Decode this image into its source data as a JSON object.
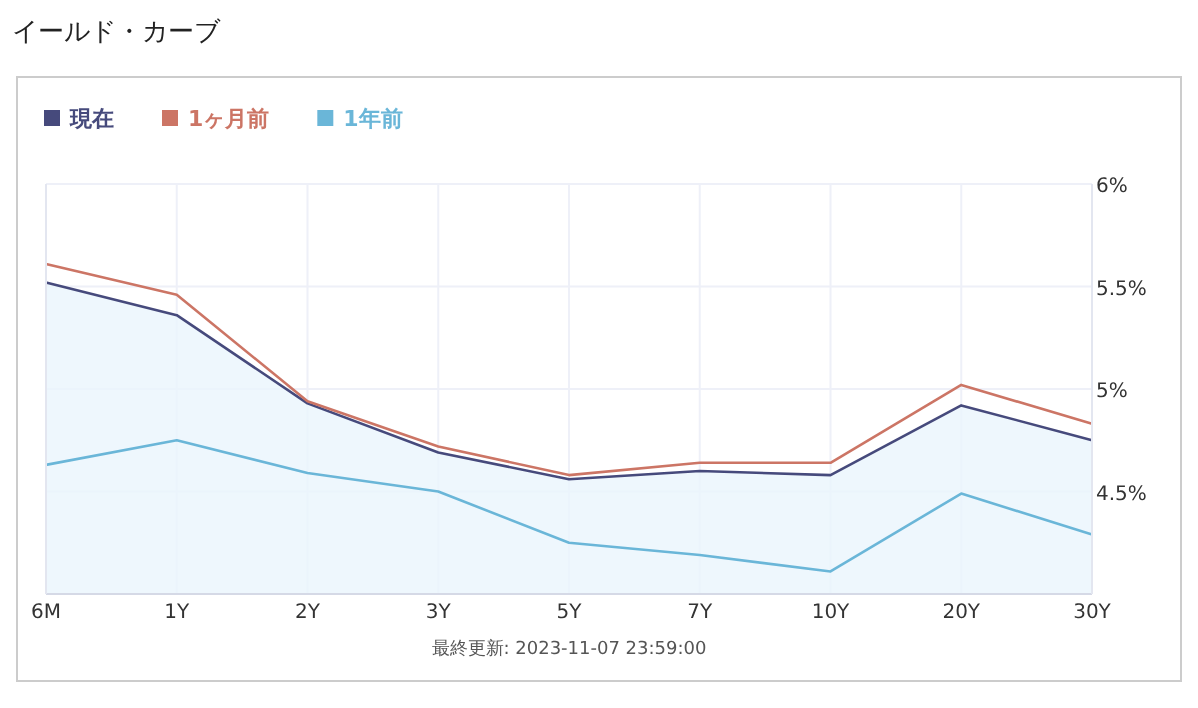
{
  "chart_data": {
    "type": "line",
    "title": "イールド・カーブ",
    "categories": [
      "6M",
      "1Y",
      "2Y",
      "3Y",
      "5Y",
      "7Y",
      "10Y",
      "20Y",
      "30Y"
    ],
    "series": [
      {
        "name": "現在",
        "type": "area",
        "color": "#464a7c",
        "values": [
          5.52,
          5.36,
          4.93,
          4.69,
          4.56,
          4.6,
          4.58,
          4.92,
          4.75
        ]
      },
      {
        "name": "1ヶ月前",
        "color": "#cc7565",
        "values": [
          5.61,
          5.46,
          4.94,
          4.72,
          4.58,
          4.64,
          4.64,
          5.02,
          4.83
        ]
      },
      {
        "name": "1年前",
        "color": "#6ab6d8",
        "values": [
          4.63,
          4.75,
          4.59,
          4.5,
          4.25,
          4.19,
          4.11,
          4.49,
          4.29
        ]
      }
    ],
    "ylim": [
      4,
      6
    ],
    "yticks": [
      {
        "value": 4.5,
        "label": "4.5%"
      },
      {
        "value": 5,
        "label": "5%"
      },
      {
        "value": 5.5,
        "label": "5.5%"
      },
      {
        "value": 6,
        "label": "6%"
      }
    ],
    "grid": true,
    "legend": "top left",
    "marker": "none",
    "line_style": "solid",
    "annotations": [
      "最終更新: 2023-11-07 23:59:00"
    ]
  }
}
